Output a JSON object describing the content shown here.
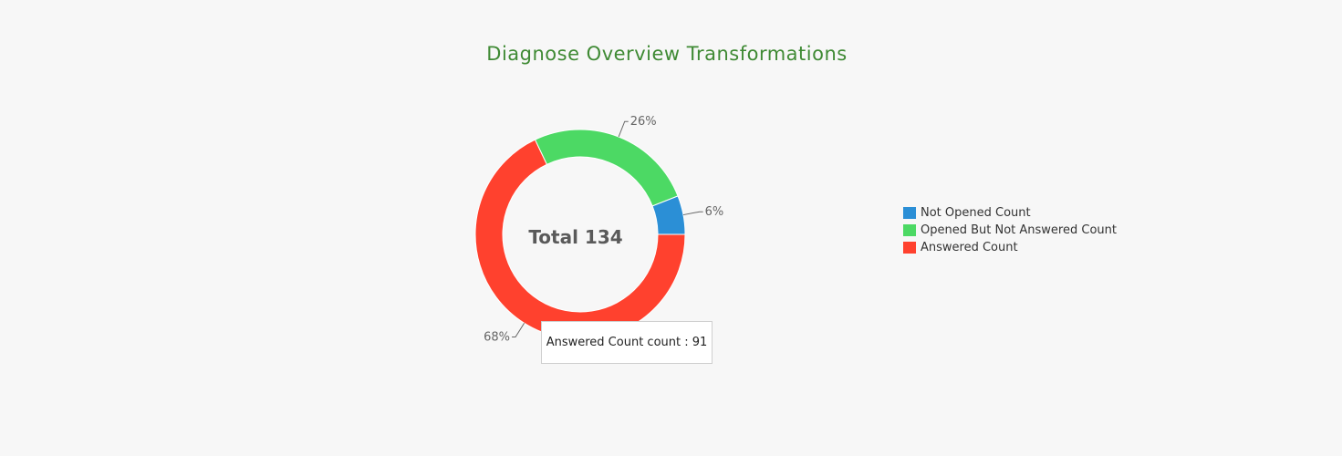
{
  "chart_data": {
    "type": "pie",
    "title": "Diagnose Overview Transformations",
    "center_label": "Total 134",
    "categories": [
      "Not Opened Count",
      "Opened But Not Answered Count",
      "Answered Count"
    ],
    "values": [
      8,
      35,
      91
    ],
    "percent_labels": [
      "6%",
      "26%",
      "68%"
    ],
    "colors": [
      "#2b8fd6",
      "#4cd964",
      "#ff412e"
    ],
    "legend_position": "right",
    "tooltip": "Answered Count count : 91"
  }
}
